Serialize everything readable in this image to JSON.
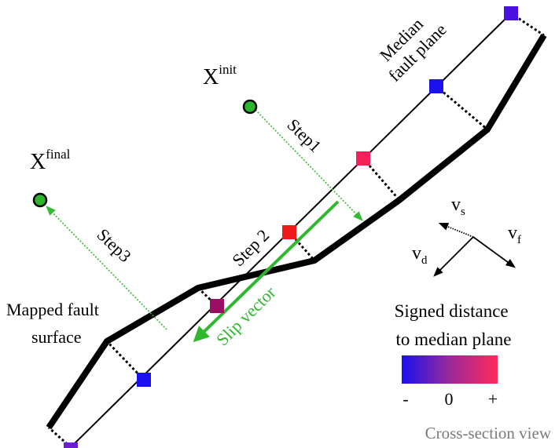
{
  "labels": {
    "x_init": "X",
    "x_init_sup": "init",
    "x_final": "X",
    "x_final_sup": "final",
    "median_line1": "Median",
    "median_line2": "fault plane",
    "step1": "Step1",
    "step2": "Step 2",
    "step3": "Step3",
    "slip_vector": "Slip vector",
    "mapped_line1": "Mapped fault",
    "mapped_line2": "surface",
    "v_s": "v",
    "v_s_sub": "s",
    "v_f": "v",
    "v_f_sub": "f",
    "v_d": "v",
    "v_d_sub": "d",
    "signed_line1": "Signed distance",
    "signed_line2": "to median plane",
    "scale_minus": "-",
    "scale_zero": "0",
    "scale_plus": "+",
    "cross_section": "Cross-section view"
  },
  "colors": {
    "point_fill": "#2db52d",
    "step_arrow": "#33bb33",
    "slip_arrow": "#2eb82e",
    "gradient_start": "#1a10f0",
    "gradient_mid": "#9a2a9a",
    "gradient_end": "#ff2a5a",
    "caption_gray": "#7a7a7a"
  }
}
